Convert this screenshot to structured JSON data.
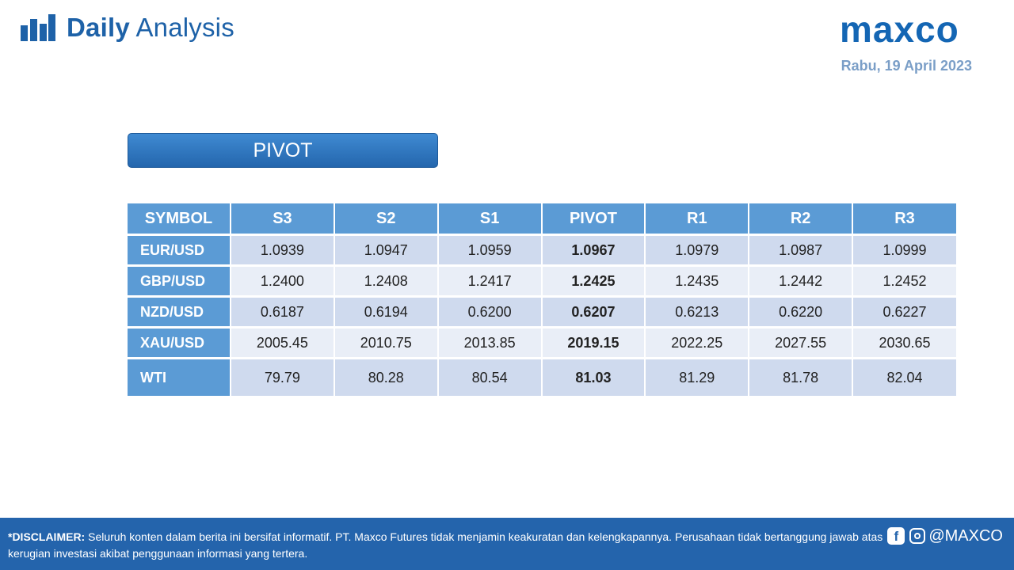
{
  "header": {
    "brand_bold": "Daily",
    "brand_light": "Analysis",
    "logo": "maxco",
    "date": "Rabu, 19 April 2023"
  },
  "banner": {
    "label": "PIVOT"
  },
  "table": {
    "columns": [
      "SYMBOL",
      "S3",
      "S2",
      "S1",
      "PIVOT",
      "R1",
      "R2",
      "R3"
    ],
    "rows": [
      {
        "symbol": "EUR/USD",
        "values": [
          "1.0939",
          "1.0947",
          "1.0959",
          "1.0967",
          "1.0979",
          "1.0987",
          "1.0999"
        ]
      },
      {
        "symbol": "GBP/USD",
        "values": [
          "1.2400",
          "1.2408",
          "1.2417",
          "1.2425",
          "1.2435",
          "1.2442",
          "1.2452"
        ]
      },
      {
        "symbol": "NZD/USD",
        "values": [
          "0.6187",
          "0.6194",
          "0.6200",
          "0.6207",
          "0.6213",
          "0.6220",
          "0.6227"
        ]
      },
      {
        "symbol": "XAU/USD",
        "values": [
          "2005.45",
          "2010.75",
          "2013.85",
          "2019.15",
          "2022.25",
          "2027.55",
          "2030.65"
        ]
      },
      {
        "symbol": "WTI",
        "values": [
          "79.79",
          "80.28",
          "80.54",
          "81.03",
          "81.29",
          "81.78",
          "82.04"
        ]
      }
    ]
  },
  "footer": {
    "disclaimer_label": "*DISCLAIMER:",
    "disclaimer_text": "Seluruh konten dalam berita ini bersifat informatif. PT. Maxco Futures tidak menjamin keakuratan dan kelengkapannya. Perusahaan tidak bertanggung jawab atas kerugian investasi akibat penggunaan informasi yang tertera.",
    "social_handle": "@MAXCO"
  },
  "colors": {
    "brand_blue": "#1e62a8",
    "header_cell": "#5b9bd5",
    "row_dark": "#cfdaee",
    "row_light": "#e9eef7",
    "footer_bg": "#2464ac",
    "date_text": "#7a9ec7"
  },
  "icons": [
    "bar-chart-icon",
    "facebook-icon",
    "instagram-icon"
  ]
}
